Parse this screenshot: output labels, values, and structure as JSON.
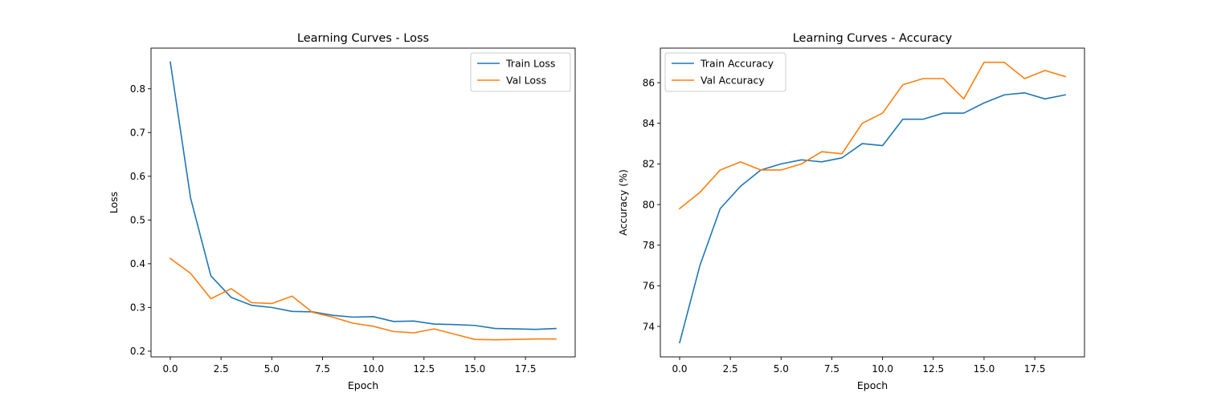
{
  "chart_data": [
    {
      "type": "line",
      "title": "Learning Curves - Loss",
      "xlabel": "Epoch",
      "ylabel": "Loss",
      "xlim": [
        -0.95,
        19.95
      ],
      "ylim": [
        0.187,
        0.893
      ],
      "xticks": [
        0,
        2.5,
        5,
        7.5,
        10,
        12.5,
        15,
        17.5
      ],
      "xtick_labels": [
        "0.0",
        "2.5",
        "5.0",
        "7.5",
        "10.0",
        "12.5",
        "15.0",
        "17.5"
      ],
      "yticks": [
        0.2,
        0.3,
        0.4,
        0.5,
        0.6,
        0.7,
        0.8
      ],
      "ytick_labels": [
        "0.2",
        "0.3",
        "0.4",
        "0.5",
        "0.6",
        "0.7",
        "0.8"
      ],
      "legend": "top-right",
      "grid": false,
      "x": [
        0,
        1,
        2,
        3,
        4,
        5,
        6,
        7,
        8,
        9,
        10,
        11,
        12,
        13,
        14,
        15,
        16,
        17,
        18,
        19
      ],
      "series": [
        {
          "name": "Train Loss",
          "color": "#1f77b4",
          "values": [
            0.861,
            0.55,
            0.372,
            0.323,
            0.305,
            0.3,
            0.291,
            0.29,
            0.282,
            0.278,
            0.279,
            0.268,
            0.269,
            0.262,
            0.261,
            0.259,
            0.252,
            0.251,
            0.25,
            0.252
          ]
        },
        {
          "name": "Val Loss",
          "color": "#ff7f0e",
          "values": [
            0.412,
            0.378,
            0.32,
            0.343,
            0.311,
            0.309,
            0.326,
            0.289,
            0.278,
            0.264,
            0.257,
            0.245,
            0.242,
            0.251,
            0.239,
            0.227,
            0.226,
            0.227,
            0.228,
            0.228
          ]
        }
      ]
    },
    {
      "type": "line",
      "title": "Learning Curves - Accuracy",
      "xlabel": "Epoch",
      "ylabel": "Accuracy (%)",
      "xlim": [
        -0.95,
        19.95
      ],
      "ylim": [
        72.5,
        87.7
      ],
      "xticks": [
        0,
        2.5,
        5,
        7.5,
        10,
        12.5,
        15,
        17.5
      ],
      "xtick_labels": [
        "0.0",
        "2.5",
        "5.0",
        "7.5",
        "10.0",
        "12.5",
        "15.0",
        "17.5"
      ],
      "yticks": [
        74,
        76,
        78,
        80,
        82,
        84,
        86
      ],
      "ytick_labels": [
        "74",
        "76",
        "78",
        "80",
        "82",
        "84",
        "86"
      ],
      "legend": "top-left",
      "grid": false,
      "x": [
        0,
        1,
        2,
        3,
        4,
        5,
        6,
        7,
        8,
        9,
        10,
        11,
        12,
        13,
        14,
        15,
        16,
        17,
        18,
        19
      ],
      "series": [
        {
          "name": "Train Accuracy",
          "color": "#1f77b4",
          "values": [
            73.2,
            77.0,
            79.8,
            80.9,
            81.7,
            82.0,
            82.2,
            82.1,
            82.3,
            83.0,
            82.9,
            84.2,
            84.2,
            84.5,
            84.5,
            85.0,
            85.4,
            85.5,
            85.2,
            85.4
          ]
        },
        {
          "name": "Val Accuracy",
          "color": "#ff7f0e",
          "values": [
            79.8,
            80.6,
            81.7,
            82.1,
            81.7,
            81.7,
            82.0,
            82.6,
            82.5,
            84.0,
            84.5,
            85.9,
            86.2,
            86.2,
            85.2,
            87.0,
            87.0,
            86.2,
            86.6,
            86.3
          ]
        }
      ]
    }
  ]
}
